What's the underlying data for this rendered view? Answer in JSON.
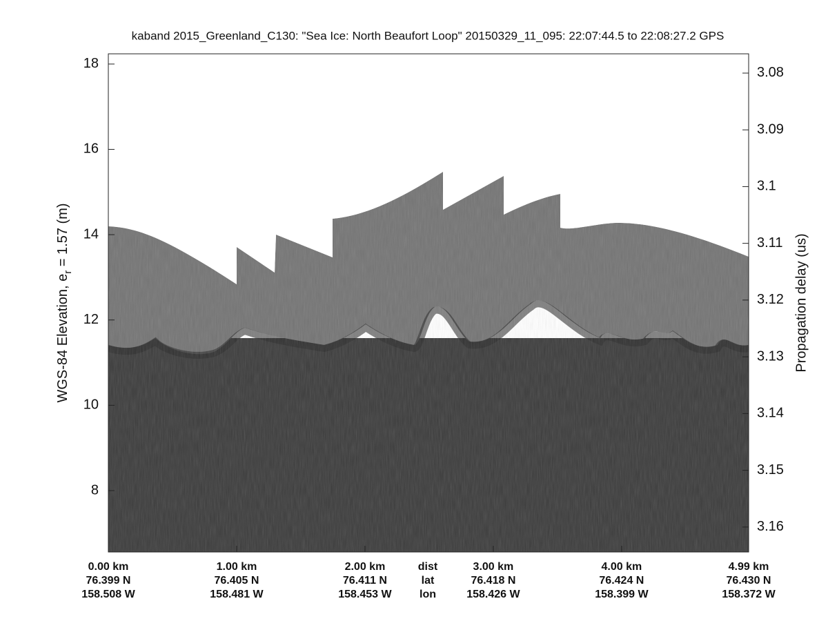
{
  "chart_data": {
    "type": "echogram",
    "title": "kaband 2015_Greenland_C130: \"Sea Ice: North Beaufort Loop\"  20150329_11_095: 22:07:44.5 to 22:08:27.2 GPS",
    "ylabel": {
      "text": "WGS-84 Elevation, e",
      "sub": "r",
      "rest": " = 1.57 (m)"
    },
    "y2label": "Propagation delay (us)",
    "ylim": [
      6.56,
      18.24
    ],
    "yticks": [
      8,
      10,
      12,
      14,
      16,
      18
    ],
    "y2lim": [
      3.1644,
      3.0766
    ],
    "y2ticks": [
      3.08,
      3.09,
      3.1,
      3.11,
      3.12,
      3.13,
      3.14,
      3.15,
      3.16
    ],
    "xlim": [
      0,
      4.99
    ],
    "xticks": [
      {
        "value": 0,
        "label": "0.00 km"
      },
      {
        "value": 1,
        "label": "1.00 km"
      },
      {
        "value": 2,
        "label": "2.00 km"
      },
      {
        "value": 3,
        "label": "3.00 km"
      },
      {
        "value": 4,
        "label": "4.00 km"
      },
      {
        "value": 4.99,
        "label": "4.99 km"
      }
    ],
    "x_lat": [
      "76.399 N",
      "76.405 N",
      "76.411 N",
      "76.418 N",
      "76.424 N",
      "76.430 N"
    ],
    "x_lon": [
      "158.508 W",
      "158.481 W",
      "158.453 W",
      "158.426 W",
      "158.399 W",
      "158.372 W"
    ],
    "x_row_labels": [
      "dist",
      "lat",
      "lon"
    ]
  }
}
